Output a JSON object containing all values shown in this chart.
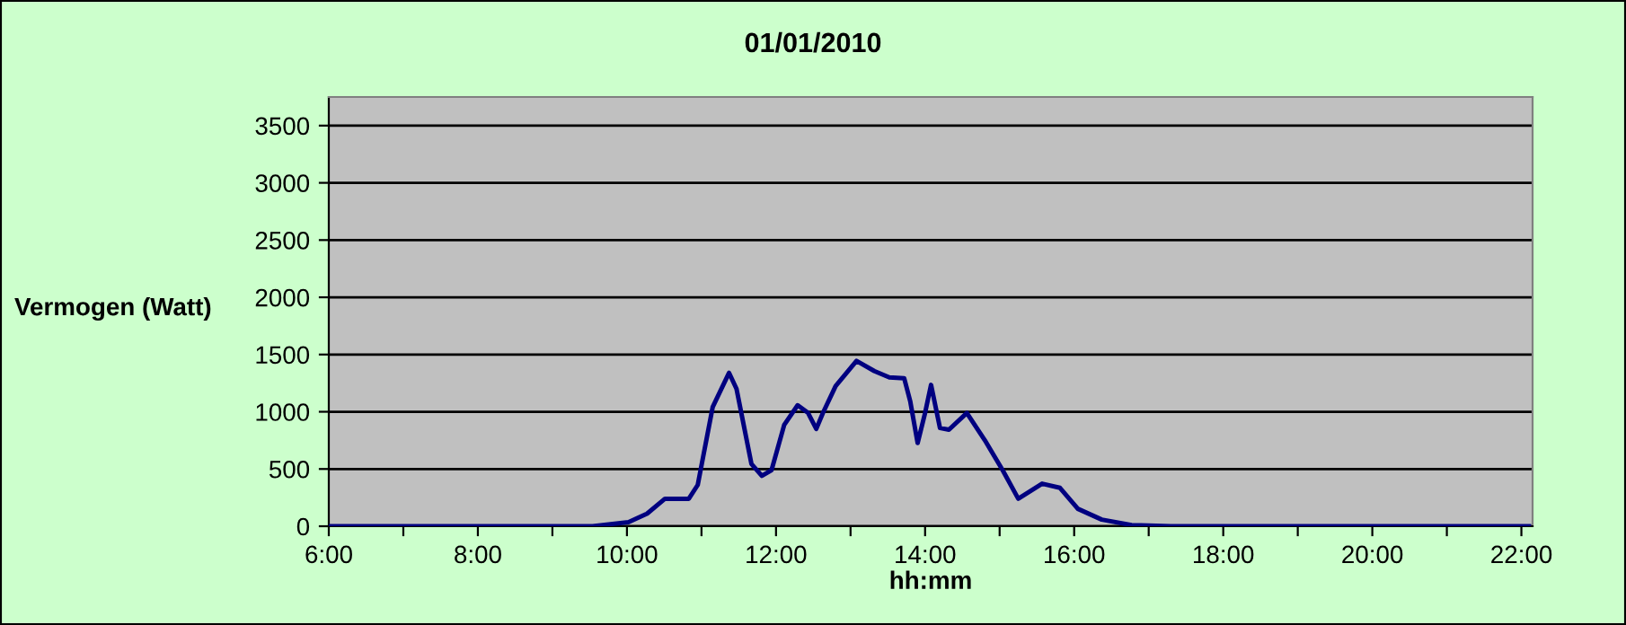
{
  "chart_data": {
    "type": "line",
    "title": "01/01/2010",
    "xlabel": "hh:mm",
    "ylabel": "Vermogen (Watt)",
    "x": [
      6.0,
      9.54,
      10.02,
      10.27,
      10.51,
      10.83,
      10.95,
      11.15,
      11.37,
      11.47,
      11.67,
      11.81,
      11.94,
      12.11,
      12.29,
      12.43,
      12.54,
      12.63,
      12.8,
      13.08,
      13.32,
      13.52,
      13.72,
      13.8,
      13.9,
      14.0,
      14.08,
      14.2,
      14.32,
      14.56,
      14.8,
      15.04,
      15.25,
      15.57,
      15.81,
      16.05,
      16.37,
      16.77,
      17.3,
      22.1
    ],
    "series": [
      {
        "color": "#000080",
        "values": [
          0,
          0,
          36,
          110,
          240,
          240,
          361,
          1040,
          1340,
          1200,
          545,
          440,
          490,
          885,
          1057,
          990,
          850,
          990,
          1225,
          1444,
          1355,
          1300,
          1292,
          1094,
          727,
          990,
          1235,
          858,
          843,
          990,
          753,
          490,
          240,
          372,
          335,
          152,
          58,
          10,
          0,
          0
        ]
      }
    ],
    "xlim": [
      6,
      22.15
    ],
    "ylim": [
      0,
      3750
    ],
    "xticks": [
      {
        "value": 6,
        "label": "6:00"
      },
      {
        "value": 7,
        "label": null
      },
      {
        "value": 8,
        "label": "8:00"
      },
      {
        "value": 9,
        "label": null
      },
      {
        "value": 10,
        "label": "10:00"
      },
      {
        "value": 11,
        "label": null
      },
      {
        "value": 12,
        "label": "12:00"
      },
      {
        "value": 13,
        "label": null
      },
      {
        "value": 14,
        "label": "14:00"
      },
      {
        "value": 15,
        "label": null
      },
      {
        "value": 16,
        "label": "16:00"
      },
      {
        "value": 17,
        "label": null
      },
      {
        "value": 18,
        "label": "18:00"
      },
      {
        "value": 19,
        "label": null
      },
      {
        "value": 20,
        "label": "20:00"
      },
      {
        "value": 21,
        "label": null
      },
      {
        "value": 22,
        "label": "22:00"
      }
    ],
    "yticks": [
      0,
      500,
      1000,
      1500,
      2000,
      2500,
      3000,
      3500
    ],
    "grid": "y",
    "legend": false,
    "marker": "none",
    "line_style": "solid"
  }
}
